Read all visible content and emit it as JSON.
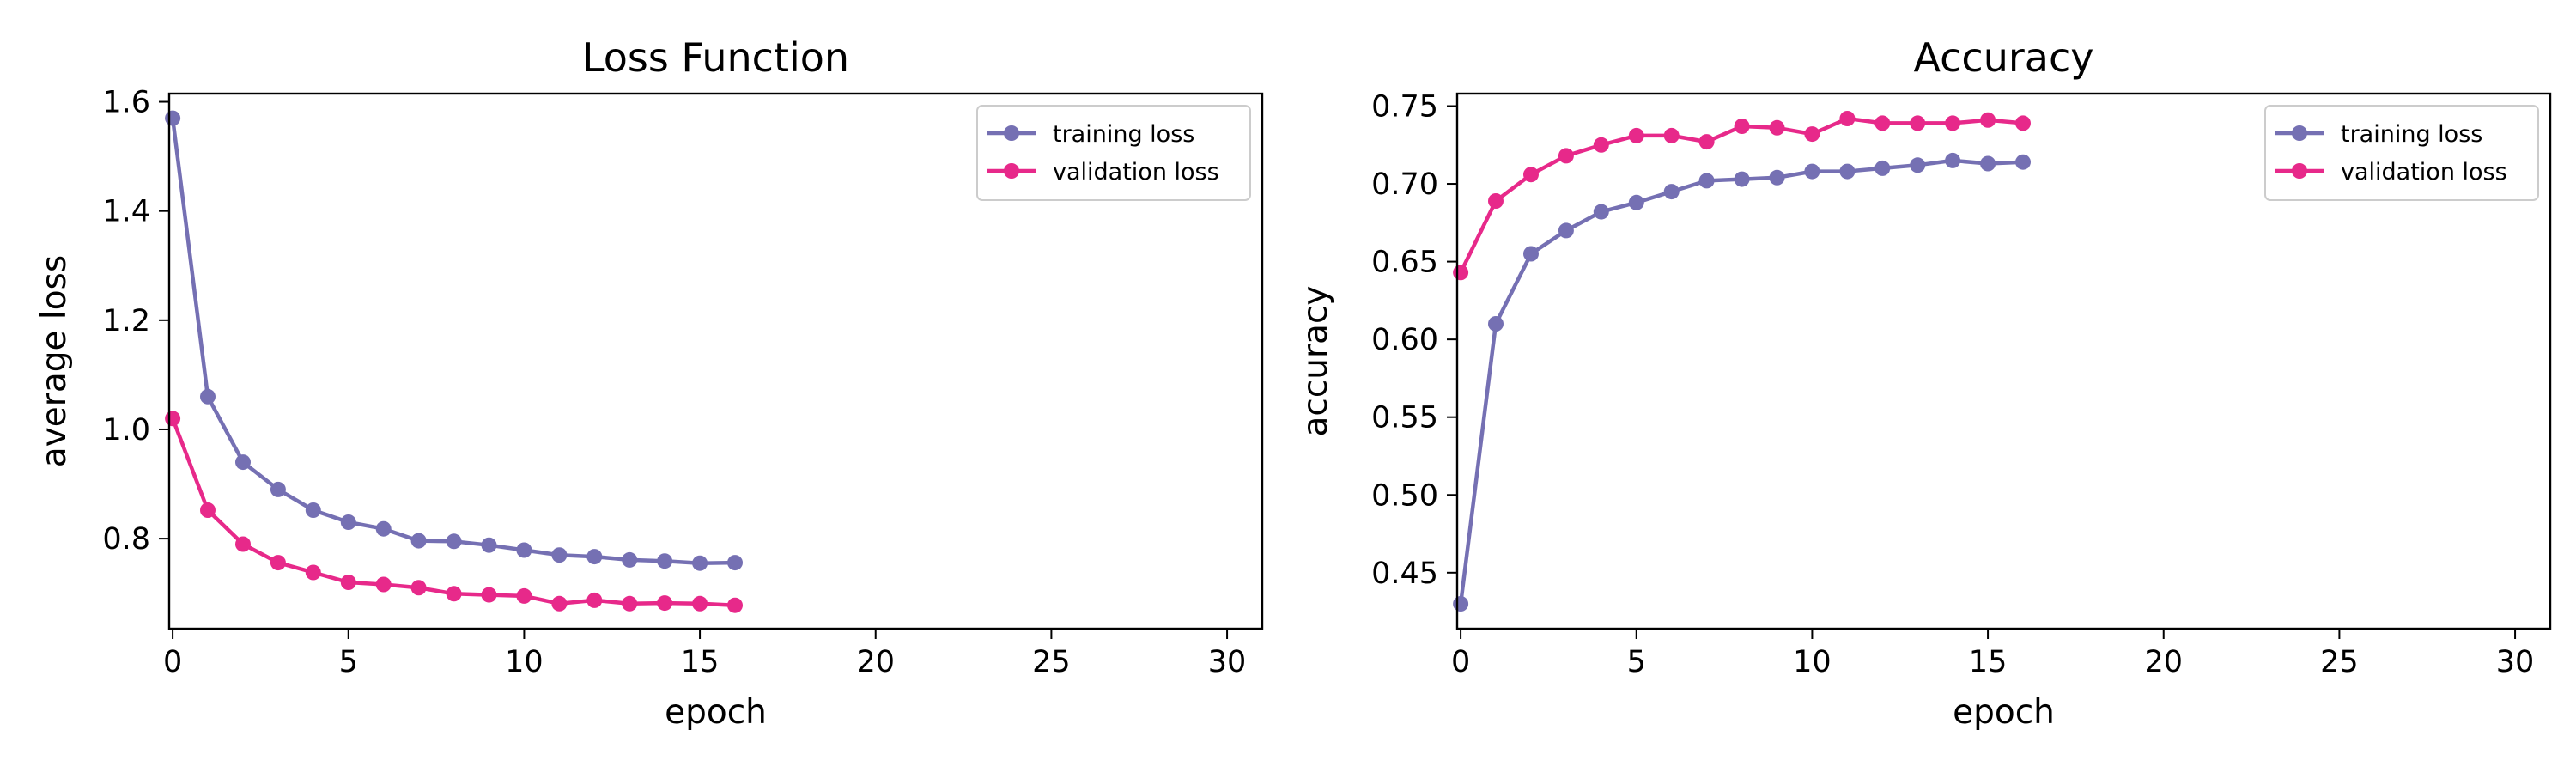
{
  "chart_data": [
    {
      "type": "line",
      "title": "Loss Function",
      "xlabel": "epoch",
      "ylabel": "average loss",
      "xlim": [
        -0.1,
        31
      ],
      "ylim": [
        0.635,
        1.615
      ],
      "xticks": [
        0,
        5,
        10,
        15,
        20,
        25,
        30
      ],
      "yticks": [
        0.8,
        1.0,
        1.2,
        1.4,
        1.6
      ],
      "ytick_labels": [
        "0.8",
        "1.0",
        "1.2",
        "1.4",
        "1.6"
      ],
      "grid": false,
      "legend_position": "top-right",
      "x": [
        0,
        1,
        2,
        3,
        4,
        5,
        6,
        7,
        8,
        9,
        10,
        11,
        12,
        13,
        14,
        15,
        16
      ],
      "series": [
        {
          "name": "training loss",
          "color": "#7570b3",
          "values": [
            1.57,
            1.06,
            0.94,
            0.89,
            0.852,
            0.83,
            0.818,
            0.796,
            0.795,
            0.788,
            0.779,
            0.77,
            0.767,
            0.761,
            0.759,
            0.755,
            0.756
          ]
        },
        {
          "name": "validation loss",
          "color": "#e7298a",
          "values": [
            1.02,
            0.852,
            0.79,
            0.756,
            0.738,
            0.72,
            0.716,
            0.71,
            0.699,
            0.697,
            0.695,
            0.681,
            0.687,
            0.681,
            0.682,
            0.681,
            0.678
          ]
        }
      ]
    },
    {
      "type": "line",
      "title": "Accuracy",
      "xlabel": "epoch",
      "ylabel": "accuracy",
      "xlim": [
        -0.1,
        31
      ],
      "ylim": [
        0.414,
        0.758
      ],
      "xticks": [
        0,
        5,
        10,
        15,
        20,
        25,
        30
      ],
      "yticks": [
        0.45,
        0.5,
        0.55,
        0.6,
        0.65,
        0.7,
        0.75
      ],
      "ytick_labels": [
        "0.45",
        "0.50",
        "0.55",
        "0.60",
        "0.65",
        "0.70",
        "0.75"
      ],
      "grid": false,
      "legend_position": "top-right",
      "x": [
        0,
        1,
        2,
        3,
        4,
        5,
        6,
        7,
        8,
        9,
        10,
        11,
        12,
        13,
        14,
        15,
        16
      ],
      "series": [
        {
          "name": "training loss",
          "color": "#7570b3",
          "values": [
            0.43,
            0.61,
            0.655,
            0.67,
            0.682,
            0.688,
            0.695,
            0.702,
            0.703,
            0.704,
            0.708,
            0.708,
            0.71,
            0.712,
            0.715,
            0.713,
            0.714
          ]
        },
        {
          "name": "validation loss",
          "color": "#e7298a",
          "values": [
            0.643,
            0.689,
            0.706,
            0.718,
            0.725,
            0.731,
            0.731,
            0.727,
            0.737,
            0.736,
            0.732,
            0.742,
            0.739,
            0.739,
            0.739,
            0.741,
            0.739
          ]
        }
      ]
    }
  ]
}
